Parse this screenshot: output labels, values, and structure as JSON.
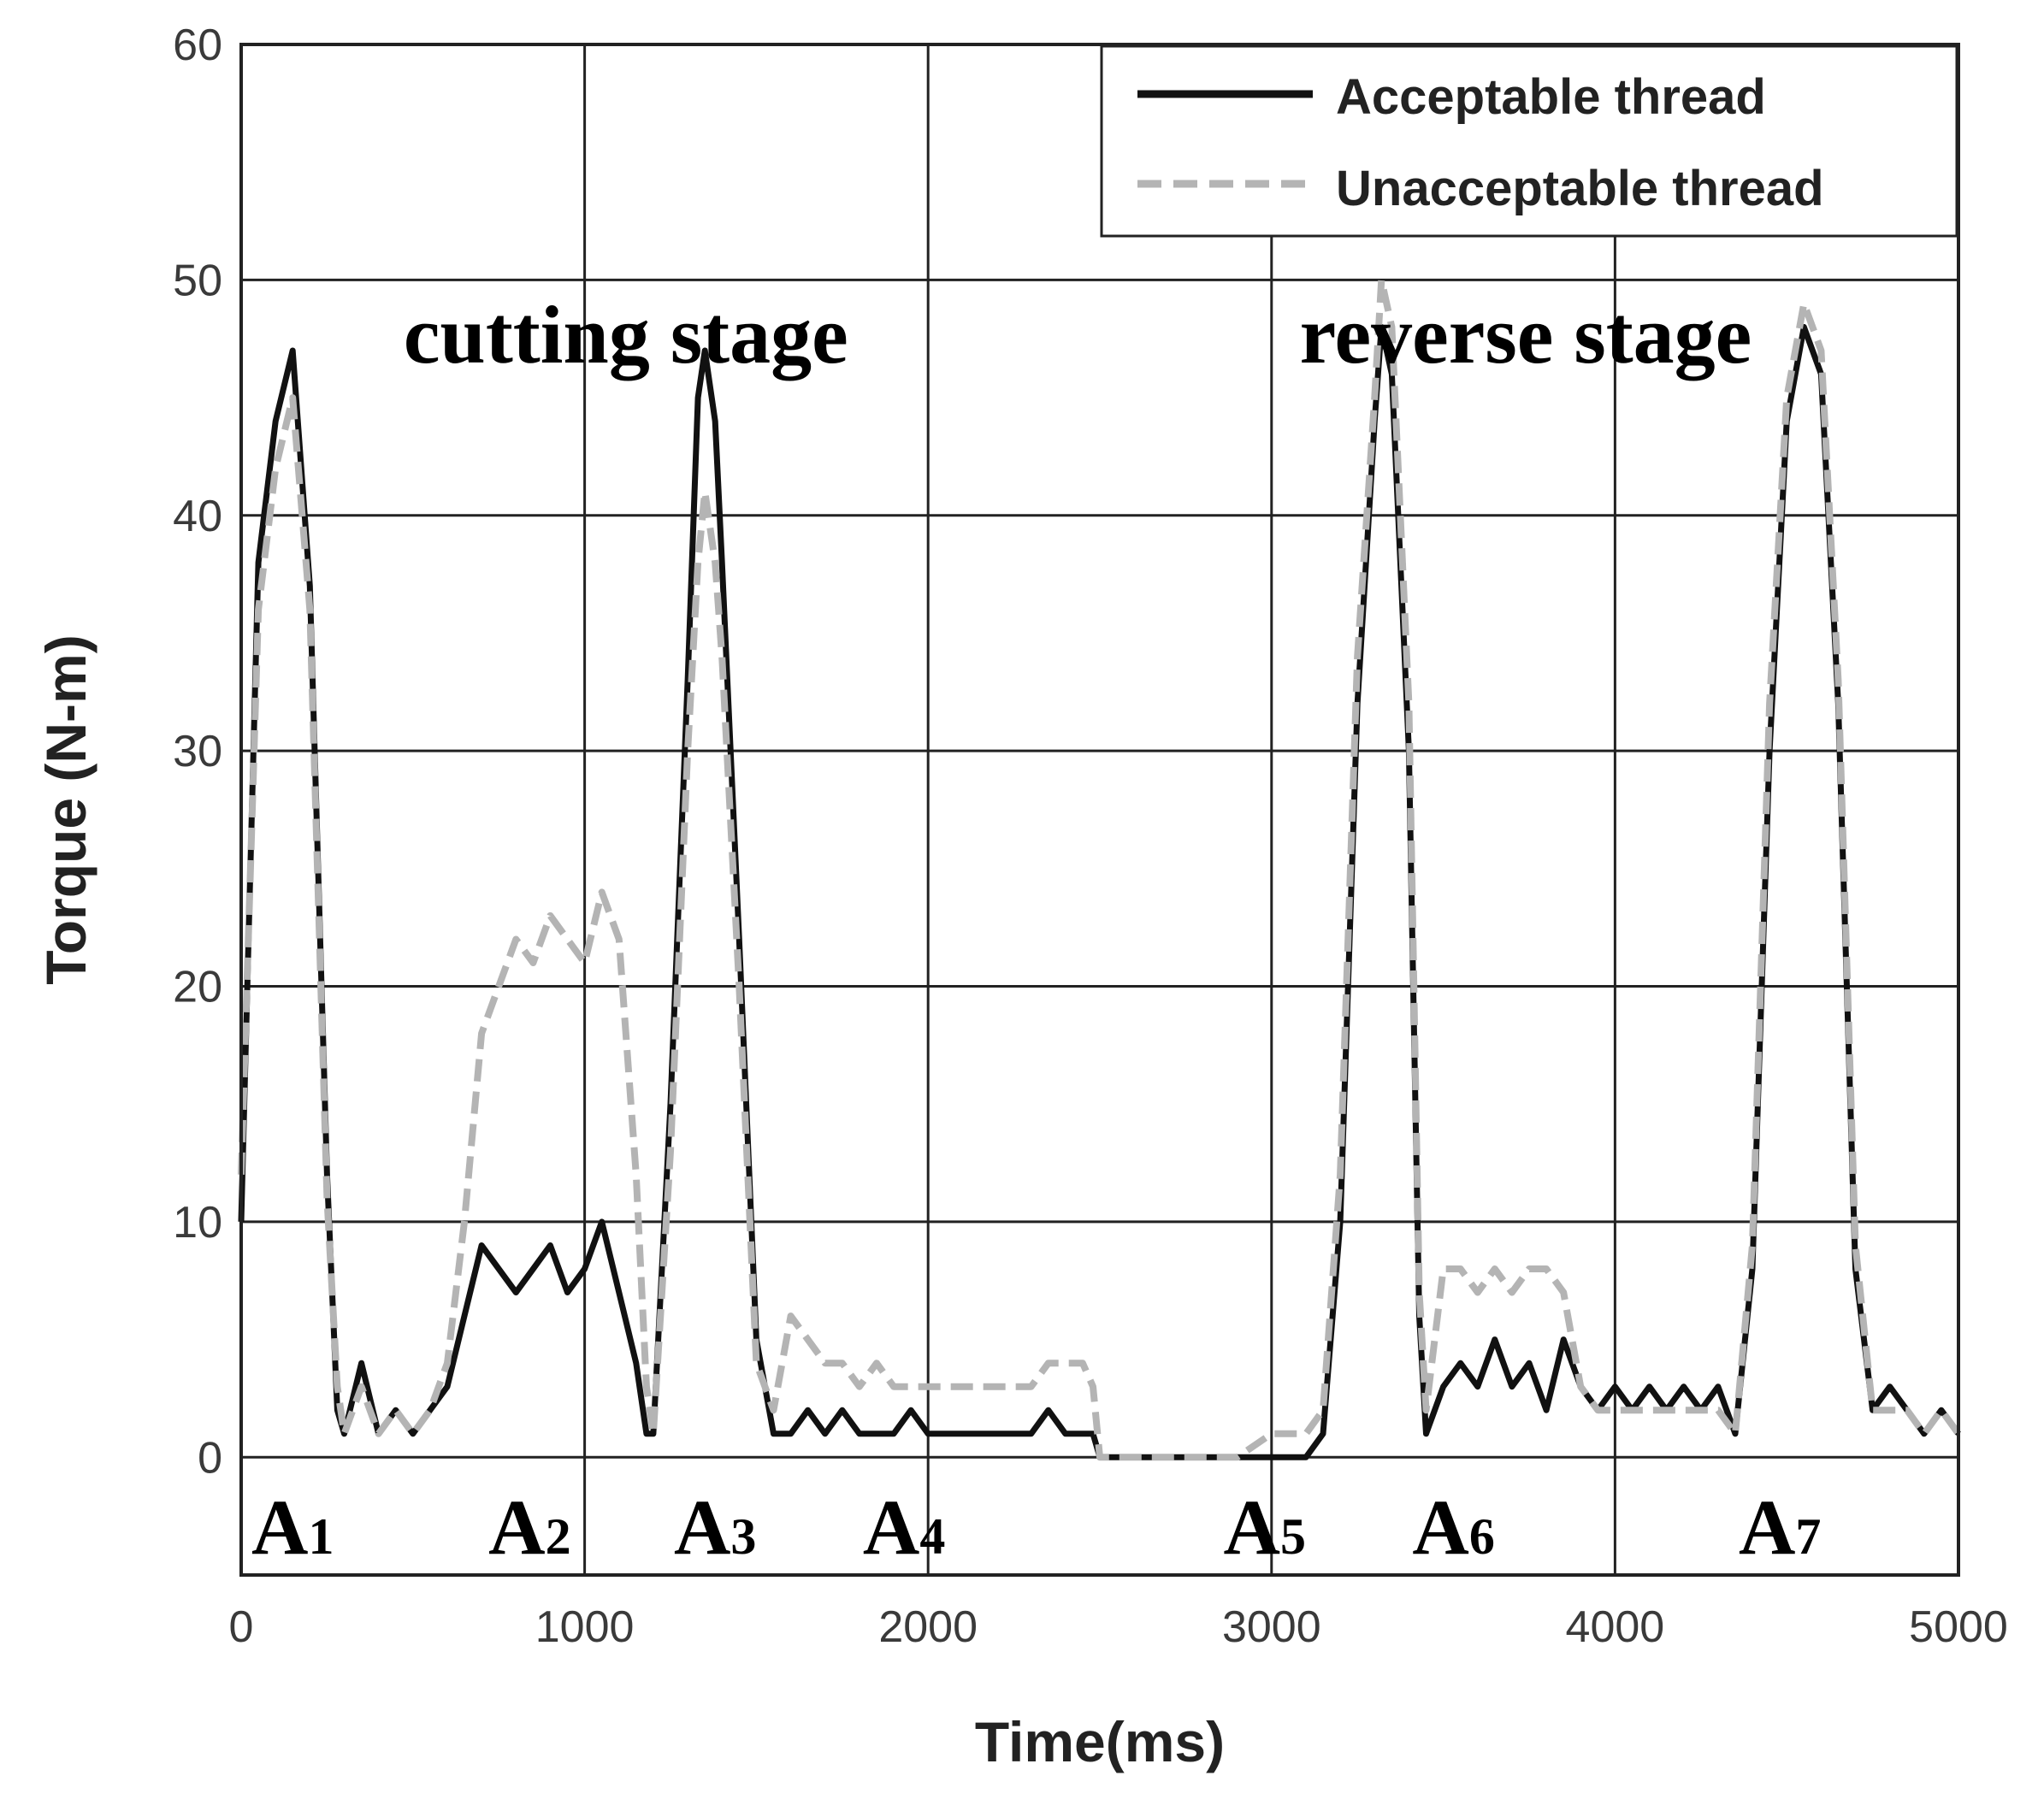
{
  "chart_data": {
    "type": "line",
    "title": "",
    "xlabel": "Time(ms)",
    "ylabel": "Torque (N-m)",
    "xlim": [
      0,
      5000
    ],
    "ylim": [
      -5,
      60
    ],
    "xticks": [
      0,
      1000,
      2000,
      3000,
      4000,
      5000
    ],
    "xtick_labels": [
      "0",
      "1000",
      "2000",
      "3000",
      "4000",
      "5000"
    ],
    "yticks": [
      0,
      10,
      20,
      30,
      40,
      50,
      60
    ],
    "ytick_labels": [
      "0",
      "10",
      "20",
      "30",
      "40",
      "50",
      "60"
    ],
    "grid": true,
    "legend_position": "top-right",
    "series": [
      {
        "name": "Acceptable thread",
        "color": "#111111",
        "style": "solid",
        "x": [
          0,
          50,
          100,
          150,
          200,
          250,
          280,
          300,
          350,
          400,
          450,
          500,
          550,
          600,
          650,
          700,
          750,
          800,
          850,
          900,
          950,
          1000,
          1050,
          1100,
          1150,
          1180,
          1200,
          1250,
          1300,
          1330,
          1350,
          1380,
          1400,
          1450,
          1500,
          1550,
          1600,
          1650,
          1700,
          1750,
          1800,
          1850,
          1900,
          1950,
          2000,
          2050,
          2100,
          2150,
          2200,
          2250,
          2300,
          2350,
          2400,
          2450,
          2480,
          2500,
          2600,
          2700,
          2800,
          2900,
          3000,
          3100,
          3150,
          3200,
          3250,
          3300,
          3320,
          3350,
          3400,
          3430,
          3450,
          3500,
          3550,
          3600,
          3650,
          3700,
          3750,
          3800,
          3850,
          3900,
          3950,
          4000,
          4050,
          4100,
          4150,
          4200,
          4250,
          4300,
          4350,
          4400,
          4450,
          4500,
          4550,
          4600,
          4650,
          4700,
          4750,
          4800,
          4850,
          4900,
          4950,
          5000
        ],
        "y": [
          10,
          38,
          44,
          47,
          37,
          12,
          2,
          1,
          4,
          1,
          2,
          1,
          2,
          3,
          6,
          9,
          8,
          7,
          8,
          9,
          7,
          8,
          10,
          7,
          4,
          1,
          1,
          15,
          33,
          45,
          47,
          44,
          38,
          22,
          5,
          1,
          1,
          2,
          1,
          2,
          1,
          1,
          1,
          2,
          1,
          1,
          1,
          1,
          1,
          1,
          1,
          2,
          1,
          1,
          1,
          0,
          0,
          0,
          0,
          0,
          0,
          0,
          1,
          10,
          32,
          44,
          48,
          46,
          30,
          6,
          1,
          3,
          4,
          3,
          5,
          3,
          4,
          2,
          5,
          3,
          2,
          3,
          2,
          3,
          2,
          3,
          2,
          3,
          1,
          8,
          30,
          44,
          48,
          46,
          32,
          8,
          2,
          3,
          2,
          1,
          2,
          1
        ]
      },
      {
        "name": "Unacceptable thread",
        "color": "#b4b4b4",
        "style": "dashed",
        "x": [
          0,
          50,
          100,
          150,
          200,
          250,
          280,
          300,
          350,
          400,
          450,
          500,
          550,
          600,
          650,
          700,
          750,
          800,
          850,
          900,
          950,
          1000,
          1050,
          1100,
          1150,
          1180,
          1200,
          1250,
          1300,
          1330,
          1350,
          1380,
          1400,
          1450,
          1500,
          1550,
          1600,
          1650,
          1700,
          1750,
          1800,
          1850,
          1900,
          1950,
          2000,
          2050,
          2100,
          2150,
          2200,
          2250,
          2300,
          2350,
          2400,
          2450,
          2480,
          2500,
          2600,
          2700,
          2800,
          2900,
          3000,
          3100,
          3150,
          3200,
          3250,
          3300,
          3320,
          3350,
          3400,
          3430,
          3450,
          3500,
          3550,
          3600,
          3650,
          3700,
          3750,
          3800,
          3850,
          3900,
          3950,
          4000,
          4050,
          4100,
          4150,
          4200,
          4250,
          4300,
          4350,
          4400,
          4450,
          4500,
          4550,
          4600,
          4650,
          4700,
          4750,
          4800,
          4850,
          4900,
          4950,
          5000
        ],
        "y": [
          12,
          36,
          42,
          45,
          36,
          11,
          3,
          1,
          3,
          1,
          2,
          1,
          2,
          4,
          10,
          18,
          20,
          22,
          21,
          23,
          22,
          21,
          24,
          22,
          12,
          3,
          1,
          13,
          30,
          38,
          41,
          38,
          34,
          20,
          4,
          2,
          6,
          5,
          4,
          4,
          3,
          4,
          3,
          3,
          3,
          3,
          3,
          3,
          3,
          3,
          3,
          4,
          4,
          4,
          3,
          0,
          0,
          0,
          0,
          0,
          1,
          1,
          2,
          12,
          34,
          45,
          50,
          48,
          32,
          7,
          2,
          8,
          8,
          7,
          8,
          7,
          8,
          8,
          7,
          3,
          2,
          2,
          2,
          2,
          2,
          2,
          2,
          2,
          1,
          9,
          32,
          45,
          49,
          47,
          33,
          9,
          2,
          2,
          2,
          1,
          2,
          1
        ]
      }
    ],
    "annotations": [
      {
        "text": "cutting stage",
        "x": 1120,
        "y": 46.5
      },
      {
        "text": "reverse stage",
        "x": 3740,
        "y": 46.5
      }
    ],
    "region_labels": [
      {
        "main": "A",
        "sub": "1",
        "x": 150
      },
      {
        "main": "A",
        "sub": "2",
        "x": 840
      },
      {
        "main": "A",
        "sub": "3",
        "x": 1380
      },
      {
        "main": "A",
        "sub": "4",
        "x": 1930
      },
      {
        "main": "A",
        "sub": "5",
        "x": 2980
      },
      {
        "main": "A",
        "sub": "6",
        "x": 3530
      },
      {
        "main": "A",
        "sub": "7",
        "x": 4480
      }
    ]
  }
}
